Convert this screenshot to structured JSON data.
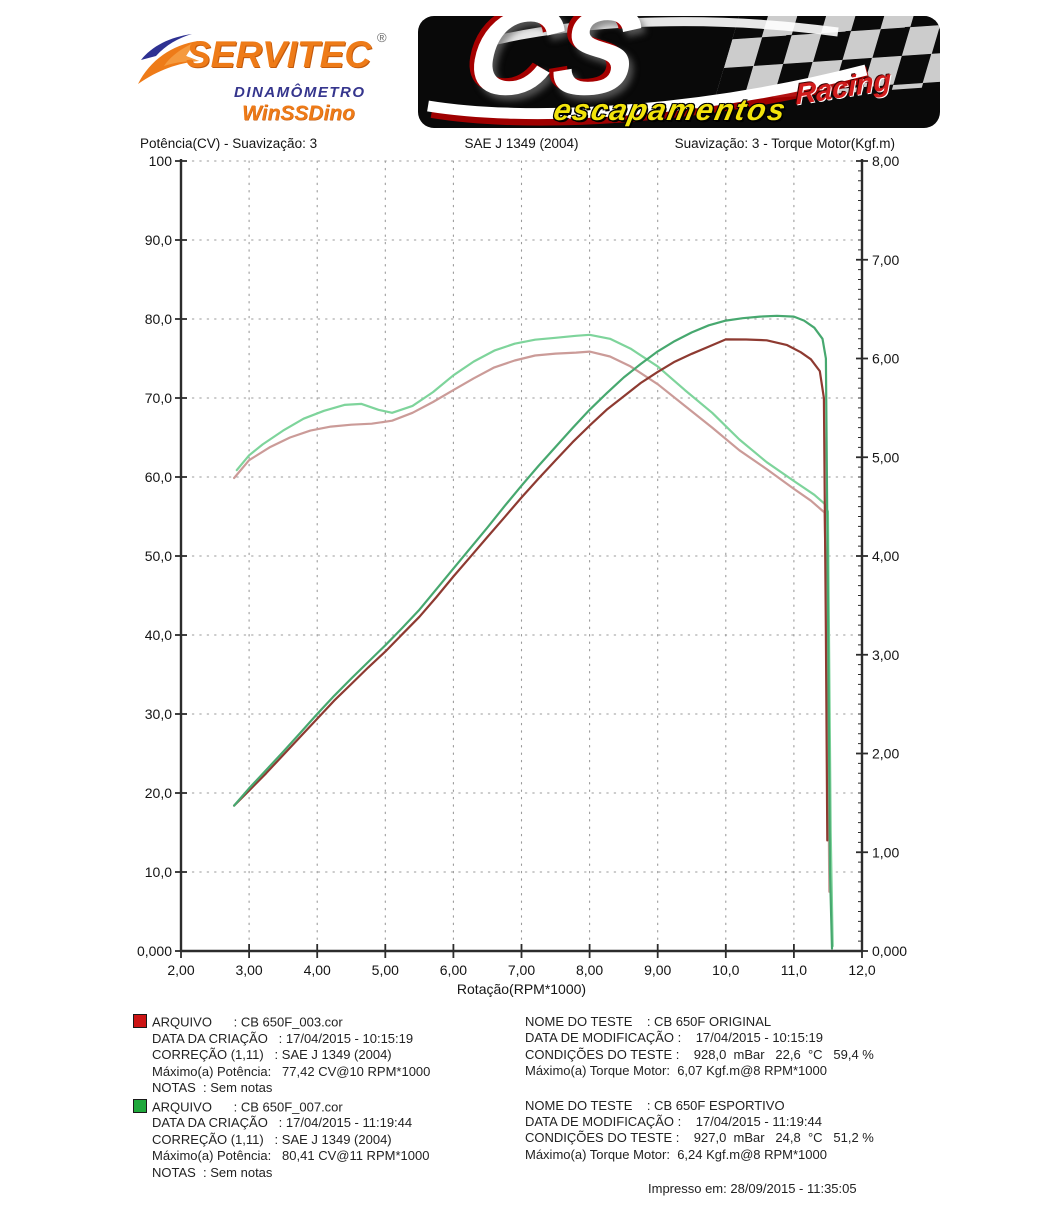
{
  "header": {
    "servitec": {
      "brand": "SERVITEC",
      "registered": "®",
      "subtitle": "DINAMÔMETRO",
      "product": "WinSSDino",
      "brand_color": "#ee7b18",
      "subtitle_color": "#35358d"
    },
    "cs": {
      "initials": "CS",
      "racing": "Racing",
      "escapamentos": "escapamentos",
      "background_color": "#090909",
      "racing_color": "#d11c1c",
      "escapamentos_color": "#f2e30a"
    }
  },
  "chart_header": {
    "left": "Potência(CV) - Suavização: 3",
    "center": "SAE J 1349 (2004)",
    "right": "Suavização: 3 - Torque Motor(Kgf.m)"
  },
  "chart_data": {
    "type": "line",
    "title": "SAE J 1349 (2004)",
    "xlabel": "Rotação(RPM*1000)",
    "grid": true,
    "x_range": [
      2,
      12
    ],
    "x_tick_values": [
      2,
      3,
      4,
      5,
      6,
      7,
      8,
      9,
      10,
      11,
      12
    ],
    "x_ticks": [
      "2,00",
      "3,00",
      "4,00",
      "5,00",
      "6,00",
      "7,00",
      "8,00",
      "9,00",
      "10,0",
      "11,0",
      "12,0"
    ],
    "left_axis": {
      "title": "Potência(CV) - Suavização: 3",
      "range": [
        0,
        100
      ],
      "tick_labels": [
        "0,000",
        "10,0",
        "20,0",
        "30,0",
        "40,0",
        "50,0",
        "60,0",
        "70,0",
        "80,0",
        "90,0",
        "100"
      ]
    },
    "right_axis": {
      "title": "Suavização: 3 - Torque Motor(Kgf.m)",
      "range": [
        0,
        8
      ],
      "tick_labels": [
        "0,000",
        "1,00",
        "2,00",
        "3,00",
        "4,00",
        "5,00",
        "6,00",
        "7,00",
        "8,00"
      ]
    },
    "series": [
      {
        "name": "torque-original",
        "label": "Torque Motor CB 650F ORIGINAL (CB 650F_003.cor)",
        "axis": "right",
        "color": "#cb9b98",
        "max": "6,07 Kgf.m@8 RPM*1000",
        "points": [
          [
            2.78,
            4.79
          ],
          [
            3.0,
            4.97
          ],
          [
            3.3,
            5.1
          ],
          [
            3.6,
            5.2
          ],
          [
            3.9,
            5.27
          ],
          [
            4.2,
            5.31
          ],
          [
            4.5,
            5.33
          ],
          [
            4.8,
            5.34
          ],
          [
            5.1,
            5.37
          ],
          [
            5.4,
            5.45
          ],
          [
            5.7,
            5.56
          ],
          [
            6.0,
            5.68
          ],
          [
            6.3,
            5.8
          ],
          [
            6.6,
            5.91
          ],
          [
            6.9,
            5.98
          ],
          [
            7.2,
            6.03
          ],
          [
            7.5,
            6.05
          ],
          [
            7.8,
            6.06
          ],
          [
            8.0,
            6.07
          ],
          [
            8.3,
            6.02
          ],
          [
            8.6,
            5.92
          ],
          [
            9.0,
            5.74
          ],
          [
            9.4,
            5.52
          ],
          [
            9.8,
            5.3
          ],
          [
            10.2,
            5.07
          ],
          [
            10.6,
            4.88
          ],
          [
            11.0,
            4.68
          ],
          [
            11.25,
            4.56
          ],
          [
            11.45,
            4.44
          ],
          [
            11.49,
            3.2
          ],
          [
            11.52,
            0.6
          ]
        ]
      },
      {
        "name": "torque-esportivo",
        "label": "Torque Motor CB 650F ESPORTIVO (CB 650F_007.cor)",
        "axis": "right",
        "color": "#7ed49b",
        "max": "6,24 Kgf.m@8 RPM*1000",
        "points": [
          [
            2.82,
            4.87
          ],
          [
            3.0,
            5.02
          ],
          [
            3.2,
            5.13
          ],
          [
            3.5,
            5.27
          ],
          [
            3.8,
            5.39
          ],
          [
            4.1,
            5.47
          ],
          [
            4.4,
            5.53
          ],
          [
            4.65,
            5.54
          ],
          [
            4.9,
            5.48
          ],
          [
            5.1,
            5.45
          ],
          [
            5.4,
            5.52
          ],
          [
            5.7,
            5.66
          ],
          [
            6.0,
            5.83
          ],
          [
            6.3,
            5.97
          ],
          [
            6.6,
            6.08
          ],
          [
            6.9,
            6.15
          ],
          [
            7.2,
            6.19
          ],
          [
            7.5,
            6.21
          ],
          [
            7.8,
            6.23
          ],
          [
            8.0,
            6.24
          ],
          [
            8.3,
            6.2
          ],
          [
            8.6,
            6.1
          ],
          [
            9.0,
            5.92
          ],
          [
            9.4,
            5.68
          ],
          [
            9.8,
            5.45
          ],
          [
            10.2,
            5.18
          ],
          [
            10.6,
            4.95
          ],
          [
            11.0,
            4.76
          ],
          [
            11.3,
            4.62
          ],
          [
            11.45,
            4.53
          ],
          [
            11.5,
            4.45
          ],
          [
            11.54,
            1.2
          ],
          [
            11.57,
            0.05
          ]
        ]
      },
      {
        "name": "power-original",
        "label": "Potência CB 650F ORIGINAL (CB 650F_003.cor)",
        "axis": "left",
        "color": "#8e3a31",
        "max": "77,42 CV@10 RPM*1000",
        "points": [
          [
            2.78,
            18.4
          ],
          [
            3.0,
            20.3
          ],
          [
            3.25,
            22.5
          ],
          [
            3.5,
            24.8
          ],
          [
            3.75,
            27.1
          ],
          [
            4.0,
            29.4
          ],
          [
            4.25,
            31.7
          ],
          [
            4.5,
            33.8
          ],
          [
            4.75,
            35.9
          ],
          [
            5.0,
            37.9
          ],
          [
            5.25,
            40.1
          ],
          [
            5.5,
            42.3
          ],
          [
            5.75,
            44.8
          ],
          [
            6.0,
            47.4
          ],
          [
            6.25,
            49.9
          ],
          [
            6.5,
            52.4
          ],
          [
            6.75,
            54.9
          ],
          [
            7.0,
            57.4
          ],
          [
            7.25,
            59.8
          ],
          [
            7.5,
            62.1
          ],
          [
            7.75,
            64.4
          ],
          [
            8.0,
            66.5
          ],
          [
            8.25,
            68.5
          ],
          [
            8.5,
            70.2
          ],
          [
            8.75,
            71.9
          ],
          [
            9.0,
            73.3
          ],
          [
            9.25,
            74.6
          ],
          [
            9.5,
            75.6
          ],
          [
            9.75,
            76.5
          ],
          [
            10.0,
            77.42
          ],
          [
            10.3,
            77.4
          ],
          [
            10.6,
            77.3
          ],
          [
            10.9,
            76.7
          ],
          [
            11.1,
            75.8
          ],
          [
            11.25,
            74.9
          ],
          [
            11.38,
            73.4
          ],
          [
            11.44,
            70.0
          ],
          [
            11.47,
            40.0
          ],
          [
            11.49,
            14.0
          ]
        ]
      },
      {
        "name": "power-esportivo",
        "label": "Potência CB 650F ESPORTIVO (CB 650F_007.cor)",
        "axis": "left",
        "color": "#47a86f",
        "max": "80,41 CV@11 RPM*1000",
        "points": [
          [
            2.78,
            18.4
          ],
          [
            3.0,
            20.6
          ],
          [
            3.25,
            22.9
          ],
          [
            3.5,
            25.2
          ],
          [
            3.75,
            27.6
          ],
          [
            4.0,
            30.0
          ],
          [
            4.25,
            32.3
          ],
          [
            4.5,
            34.5
          ],
          [
            4.75,
            36.6
          ],
          [
            5.0,
            38.7
          ],
          [
            5.25,
            40.9
          ],
          [
            5.5,
            43.2
          ],
          [
            5.75,
            45.8
          ],
          [
            6.0,
            48.4
          ],
          [
            6.25,
            51.0
          ],
          [
            6.5,
            53.6
          ],
          [
            6.75,
            56.3
          ],
          [
            7.0,
            58.9
          ],
          [
            7.25,
            61.4
          ],
          [
            7.5,
            63.8
          ],
          [
            7.75,
            66.2
          ],
          [
            8.0,
            68.5
          ],
          [
            8.25,
            70.6
          ],
          [
            8.5,
            72.6
          ],
          [
            8.75,
            74.3
          ],
          [
            9.0,
            75.9
          ],
          [
            9.25,
            77.2
          ],
          [
            9.5,
            78.3
          ],
          [
            9.75,
            79.2
          ],
          [
            10.0,
            79.8
          ],
          [
            10.25,
            80.1
          ],
          [
            10.5,
            80.3
          ],
          [
            10.75,
            80.41
          ],
          [
            11.0,
            80.3
          ],
          [
            11.15,
            79.8
          ],
          [
            11.3,
            78.9
          ],
          [
            11.42,
            77.5
          ],
          [
            11.47,
            75.0
          ],
          [
            11.5,
            45.0
          ],
          [
            11.53,
            10.0
          ],
          [
            11.56,
            0.3
          ]
        ]
      }
    ]
  },
  "legend": {
    "files": [
      {
        "swatch_color": "#cc1414",
        "lines": [
          "ARQUIVO      : CB 650F_003.cor",
          "DATA DA CRIAÇÃO   : 17/04/2015 - 10:15:19",
          "CORREÇÃO (1,11)   : SAE J 1349 (2004)",
          "Máximo(a) Potência:   77,42 CV@10 RPM*1000",
          "NOTAS  : Sem notas"
        ]
      },
      {
        "swatch_color": "#1fa83c",
        "lines": [
          "ARQUIVO      : CB 650F_007.cor",
          "DATA DA CRIAÇÃO   : 17/04/2015 - 11:19:44",
          "CORREÇÃO (1,11)   : SAE J 1349 (2004)",
          "Máximo(a) Potência:   80,41 CV@11 RPM*1000",
          "NOTAS  : Sem notas"
        ]
      }
    ],
    "tests": [
      {
        "lines": [
          "NOME DO TESTE    : CB 650F ORIGINAL",
          "DATA DE MODIFICAÇÃO :    17/04/2015 - 10:15:19",
          "CONDIÇÕES DO TESTE :    928,0  mBar   22,6  °C   59,4 %",
          "Máximo(a) Torque Motor:  6,07 Kgf.m@8 RPM*1000"
        ]
      },
      {
        "lines": [
          "NOME DO TESTE    : CB 650F ESPORTIVO",
          "DATA DE MODIFICAÇÃO :    17/04/2015 - 11:19:44",
          "CONDIÇÕES DO TESTE :    927,0  mBar   24,8  °C   51,2 %",
          "Máximo(a) Torque Motor:  6,24 Kgf.m@8 RPM*1000"
        ]
      }
    ],
    "printed": "Impresso em: 28/09/2015 - 11:35:05"
  }
}
